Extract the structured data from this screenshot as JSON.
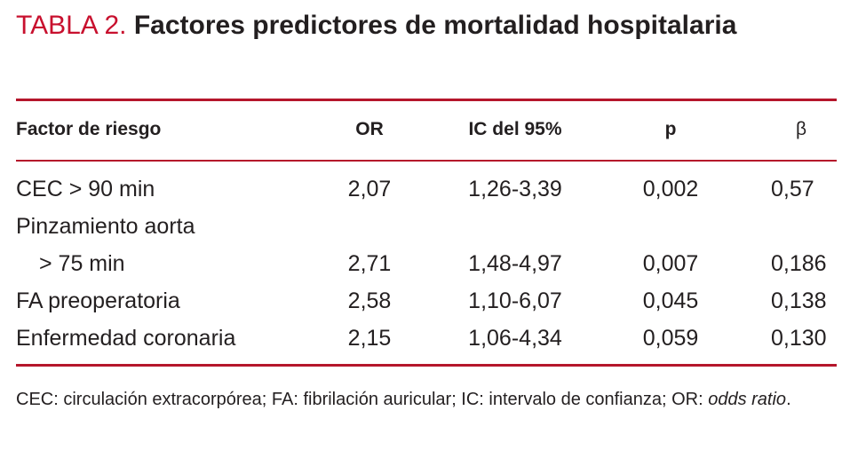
{
  "header": {
    "label": "TABLA 2.",
    "title": "Factores predictores de mortalidad hospitalaria"
  },
  "table": {
    "columns": [
      "Factor de riesgo",
      "OR",
      "IC del 95%",
      "p",
      "β"
    ],
    "rows": [
      {
        "factor": [
          "CEC > 90 min"
        ],
        "or": "2,07",
        "ic": "1,26-3,39",
        "p": "0,002",
        "beta": "0,57"
      },
      {
        "factor": [
          "Pinzamiento aorta",
          "> 75 min"
        ],
        "or": "2,71",
        "ic": "1,48-4,97",
        "p": "0,007",
        "beta": "0,186"
      },
      {
        "factor": [
          "FA preoperatoria"
        ],
        "or": "2,58",
        "ic": "1,10-6,07",
        "p": "0,045",
        "beta": "0,138"
      },
      {
        "factor": [
          "Enfermedad coronaria"
        ],
        "or": "2,15",
        "ic": "1,06-4,34",
        "p": "0,059",
        "beta": "0,130"
      }
    ]
  },
  "footnote": {
    "text": "CEC: circulación extracorpórea; FA: fibrilación auricular; IC: intervalo de confianza; OR: ",
    "italic": "odds ratio",
    "end": "."
  }
}
